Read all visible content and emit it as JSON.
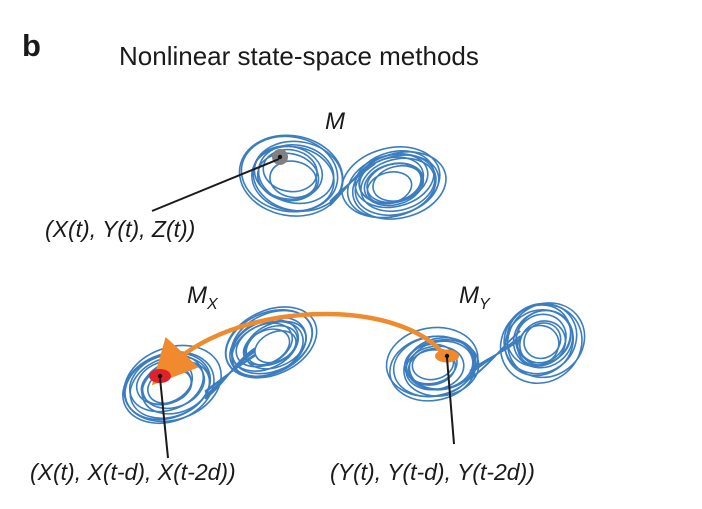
{
  "panel": {
    "letter": "b",
    "title": "Nonlinear state-space methods"
  },
  "manifolds": {
    "full": {
      "label": "M",
      "point_label": "(X(t), Y(t), Z(t))"
    },
    "shadow_x": {
      "label_main": "M",
      "label_sub": "X",
      "point_label": "(X(t), X(t-d), X(t-2d))"
    },
    "shadow_y": {
      "label_main": "M",
      "label_sub": "Y",
      "point_label": "(Y(t), Y(t-d), Y(t-2d))"
    }
  },
  "colors": {
    "attractor": "#3b7dbf",
    "arrow": "#f08a2c",
    "point_full": "#808080",
    "point_x": "#e0202a",
    "point_y": "#f08a2c",
    "text": "#1a1a1a"
  }
}
